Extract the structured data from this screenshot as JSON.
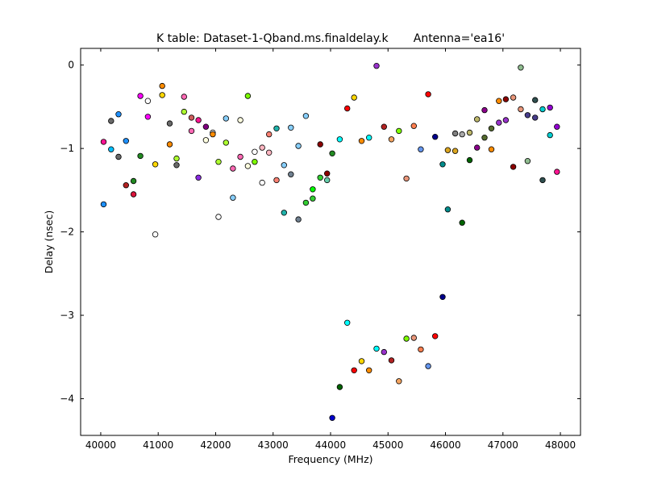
{
  "chart_data": {
    "type": "scatter",
    "title": "K table: Dataset-1-Qband.ms.finaldelay.k       Antenna='ea16'",
    "xlabel": "Frequency (MHz)",
    "ylabel": "Delay (nsec)",
    "xlim": [
      39650,
      48350
    ],
    "ylim": [
      -4.44,
      0.2
    ],
    "xticks": [
      "40000",
      "41000",
      "42000",
      "43000",
      "44000",
      "45000",
      "46000",
      "47000",
      "48000"
    ],
    "yticks": [
      "0",
      "−1",
      "−2",
      "−3",
      "−4"
    ],
    "grid": false,
    "legend": "none",
    "points": [
      {
        "x": 40050,
        "y": -0.92,
        "color": "#ff1493"
      },
      {
        "x": 40050,
        "y": -1.67,
        "color": "#1e90ff"
      },
      {
        "x": 40180,
        "y": -0.67,
        "color": "#696969"
      },
      {
        "x": 40180,
        "y": -1.01,
        "color": "#00bfff"
      },
      {
        "x": 40310,
        "y": -0.59,
        "color": "#1e90ff"
      },
      {
        "x": 40310,
        "y": -1.1,
        "color": "#696969"
      },
      {
        "x": 40440,
        "y": -0.91,
        "color": "#1e90ff"
      },
      {
        "x": 40440,
        "y": -1.44,
        "color": "#b22222"
      },
      {
        "x": 40570,
        "y": -1.39,
        "color": "#228b22"
      },
      {
        "x": 40570,
        "y": -1.55,
        "color": "#dc143c"
      },
      {
        "x": 40690,
        "y": -0.37,
        "color": "#ff00ff"
      },
      {
        "x": 40690,
        "y": -1.09,
        "color": "#228b22"
      },
      {
        "x": 40820,
        "y": -0.43,
        "color": "#ffffff"
      },
      {
        "x": 40820,
        "y": -0.62,
        "color": "#ff00ff"
      },
      {
        "x": 40950,
        "y": -1.19,
        "color": "#ffd700"
      },
      {
        "x": 40950,
        "y": -2.03,
        "color": "#ffffff"
      },
      {
        "x": 41070,
        "y": -0.25,
        "color": "#ff8c00"
      },
      {
        "x": 41070,
        "y": -0.36,
        "color": "#ffd700"
      },
      {
        "x": 41200,
        "y": -0.7,
        "color": "#696969"
      },
      {
        "x": 41200,
        "y": -0.95,
        "color": "#ff8c00"
      },
      {
        "x": 41320,
        "y": -1.12,
        "color": "#adff2f"
      },
      {
        "x": 41320,
        "y": -1.2,
        "color": "#696969"
      },
      {
        "x": 41450,
        "y": -0.38,
        "color": "#ff69b4"
      },
      {
        "x": 41450,
        "y": -0.56,
        "color": "#adff2f"
      },
      {
        "x": 41580,
        "y": -0.63,
        "color": "#cd5c5c"
      },
      {
        "x": 41580,
        "y": -0.79,
        "color": "#ff69b4"
      },
      {
        "x": 41700,
        "y": -0.66,
        "color": "#ff1493"
      },
      {
        "x": 41700,
        "y": -1.35,
        "color": "#8a2be2"
      },
      {
        "x": 41830,
        "y": -0.74,
        "color": "#800080"
      },
      {
        "x": 41830,
        "y": -0.9,
        "color": "#ffffe0"
      },
      {
        "x": 41950,
        "y": -0.81,
        "color": "#ffffff"
      },
      {
        "x": 41950,
        "y": -0.83,
        "color": "#ff8c00"
      },
      {
        "x": 42050,
        "y": -1.16,
        "color": "#adff2f"
      },
      {
        "x": 42050,
        "y": -1.82,
        "color": "#ffffff"
      },
      {
        "x": 42180,
        "y": -0.64,
        "color": "#87cefa"
      },
      {
        "x": 42180,
        "y": -0.93,
        "color": "#adff2f"
      },
      {
        "x": 42300,
        "y": -1.24,
        "color": "#ff69b4"
      },
      {
        "x": 42300,
        "y": -1.59,
        "color": "#87cefa"
      },
      {
        "x": 42430,
        "y": -0.66,
        "color": "#ffffe0"
      },
      {
        "x": 42430,
        "y": -1.1,
        "color": "#ff69b4"
      },
      {
        "x": 42560,
        "y": -0.37,
        "color": "#7cfc00"
      },
      {
        "x": 42560,
        "y": -1.21,
        "color": "#ffffe0"
      },
      {
        "x": 42680,
        "y": -1.04,
        "color": "#ffffff"
      },
      {
        "x": 42680,
        "y": -1.16,
        "color": "#7cfc00"
      },
      {
        "x": 42810,
        "y": -0.99,
        "color": "#ffb6c1"
      },
      {
        "x": 42810,
        "y": -1.41,
        "color": "#ffffff"
      },
      {
        "x": 42930,
        "y": -0.83,
        "color": "#fa8072"
      },
      {
        "x": 42930,
        "y": -1.05,
        "color": "#ffb6c1"
      },
      {
        "x": 43060,
        "y": -0.76,
        "color": "#20b2aa"
      },
      {
        "x": 43060,
        "y": -1.38,
        "color": "#fa8072"
      },
      {
        "x": 43190,
        "y": -1.2,
        "color": "#87cefa"
      },
      {
        "x": 43190,
        "y": -1.77,
        "color": "#20b2aa"
      },
      {
        "x": 43310,
        "y": -0.75,
        "color": "#87cefa"
      },
      {
        "x": 43310,
        "y": -1.31,
        "color": "#708090"
      },
      {
        "x": 43440,
        "y": -0.97,
        "color": "#87cefa"
      },
      {
        "x": 43440,
        "y": -1.85,
        "color": "#708090"
      },
      {
        "x": 43570,
        "y": -0.61,
        "color": "#87cefa"
      },
      {
        "x": 43570,
        "y": -1.65,
        "color": "#32cd32"
      },
      {
        "x": 43690,
        "y": -1.49,
        "color": "#00ff00"
      },
      {
        "x": 43690,
        "y": -1.6,
        "color": "#32cd32"
      },
      {
        "x": 43820,
        "y": -0.95,
        "color": "#8b0000"
      },
      {
        "x": 43820,
        "y": -1.35,
        "color": "#32cd32"
      },
      {
        "x": 43940,
        "y": -1.3,
        "color": "#8b0000"
      },
      {
        "x": 43940,
        "y": -1.38,
        "color": "#66cdaa"
      },
      {
        "x": 44030,
        "y": -1.06,
        "color": "#228b22"
      },
      {
        "x": 44030,
        "y": -4.23,
        "color": "#0000cd"
      },
      {
        "x": 44160,
        "y": -0.89,
        "color": "#00ffff"
      },
      {
        "x": 44160,
        "y": -3.86,
        "color": "#006400"
      },
      {
        "x": 44290,
        "y": -0.52,
        "color": "#ff0000"
      },
      {
        "x": 44290,
        "y": -3.09,
        "color": "#00ffff"
      },
      {
        "x": 44410,
        "y": -0.39,
        "color": "#ffd700"
      },
      {
        "x": 44410,
        "y": -3.66,
        "color": "#ff0000"
      },
      {
        "x": 44540,
        "y": -0.91,
        "color": "#ff8c00"
      },
      {
        "x": 44540,
        "y": -3.55,
        "color": "#ffd700"
      },
      {
        "x": 44670,
        "y": -0.87,
        "color": "#00ffff"
      },
      {
        "x": 44670,
        "y": -3.66,
        "color": "#ff8c00"
      },
      {
        "x": 44800,
        "y": -0.01,
        "color": "#9932cc"
      },
      {
        "x": 44800,
        "y": -3.4,
        "color": "#00ffff"
      },
      {
        "x": 44930,
        "y": -0.74,
        "color": "#b22222"
      },
      {
        "x": 44930,
        "y": -3.44,
        "color": "#9932cc"
      },
      {
        "x": 45060,
        "y": -0.89,
        "color": "#f4a460"
      },
      {
        "x": 45060,
        "y": -3.54,
        "color": "#b22222"
      },
      {
        "x": 45190,
        "y": -0.79,
        "color": "#7fff00"
      },
      {
        "x": 45190,
        "y": -3.79,
        "color": "#f4a460"
      },
      {
        "x": 45320,
        "y": -1.36,
        "color": "#e9967a"
      },
      {
        "x": 45320,
        "y": -3.28,
        "color": "#7fff00"
      },
      {
        "x": 45450,
        "y": -0.73,
        "color": "#ff7f50"
      },
      {
        "x": 45450,
        "y": -3.27,
        "color": "#e9967a"
      },
      {
        "x": 45570,
        "y": -1.01,
        "color": "#6495ed"
      },
      {
        "x": 45570,
        "y": -3.41,
        "color": "#ff7f50"
      },
      {
        "x": 45700,
        "y": -0.35,
        "color": "#ff0000"
      },
      {
        "x": 45700,
        "y": -3.61,
        "color": "#6495ed"
      },
      {
        "x": 45820,
        "y": -0.86,
        "color": "#00008b"
      },
      {
        "x": 45820,
        "y": -3.25,
        "color": "#ff0000"
      },
      {
        "x": 45950,
        "y": -1.19,
        "color": "#008b8b"
      },
      {
        "x": 45950,
        "y": -2.78,
        "color": "#00008b"
      },
      {
        "x": 46040,
        "y": -1.02,
        "color": "#daa520"
      },
      {
        "x": 46040,
        "y": -1.73,
        "color": "#008b8b"
      },
      {
        "x": 46170,
        "y": -0.82,
        "color": "#808080"
      },
      {
        "x": 46170,
        "y": -1.03,
        "color": "#daa520"
      },
      {
        "x": 46290,
        "y": -0.83,
        "color": "#a9a9a9"
      },
      {
        "x": 46290,
        "y": -1.89,
        "color": "#006400"
      },
      {
        "x": 46420,
        "y": -0.81,
        "color": "#bdb76b"
      },
      {
        "x": 46420,
        "y": -1.14,
        "color": "#006400"
      },
      {
        "x": 46550,
        "y": -0.65,
        "color": "#bdb76b"
      },
      {
        "x": 46550,
        "y": -0.99,
        "color": "#8b008b"
      },
      {
        "x": 46680,
        "y": -0.54,
        "color": "#8b008b"
      },
      {
        "x": 46680,
        "y": -0.87,
        "color": "#556b2f"
      },
      {
        "x": 46800,
        "y": -0.76,
        "color": "#556b2f"
      },
      {
        "x": 46800,
        "y": -1.01,
        "color": "#ff8c00"
      },
      {
        "x": 46930,
        "y": -0.43,
        "color": "#ff8c00"
      },
      {
        "x": 46930,
        "y": -0.69,
        "color": "#9932cc"
      },
      {
        "x": 47050,
        "y": -0.41,
        "color": "#8b0000"
      },
      {
        "x": 47050,
        "y": -0.66,
        "color": "#9932cc"
      },
      {
        "x": 47180,
        "y": -0.39,
        "color": "#e9967a"
      },
      {
        "x": 47180,
        "y": -1.22,
        "color": "#8b0000"
      },
      {
        "x": 47310,
        "y": -0.03,
        "color": "#8fbc8f"
      },
      {
        "x": 47310,
        "y": -0.53,
        "color": "#e9967a"
      },
      {
        "x": 47430,
        "y": -0.6,
        "color": "#483d8b"
      },
      {
        "x": 47430,
        "y": -1.15,
        "color": "#8fbc8f"
      },
      {
        "x": 47560,
        "y": -0.42,
        "color": "#2f4f4f"
      },
      {
        "x": 47560,
        "y": -0.63,
        "color": "#483d8b"
      },
      {
        "x": 47690,
        "y": -0.53,
        "color": "#00ced1"
      },
      {
        "x": 47690,
        "y": -1.38,
        "color": "#2f4f4f"
      },
      {
        "x": 47820,
        "y": -0.51,
        "color": "#9400d3"
      },
      {
        "x": 47820,
        "y": -0.84,
        "color": "#00ced1"
      },
      {
        "x": 47940,
        "y": -0.74,
        "color": "#9400d3"
      },
      {
        "x": 47940,
        "y": -1.28,
        "color": "#ff1493"
      }
    ]
  }
}
